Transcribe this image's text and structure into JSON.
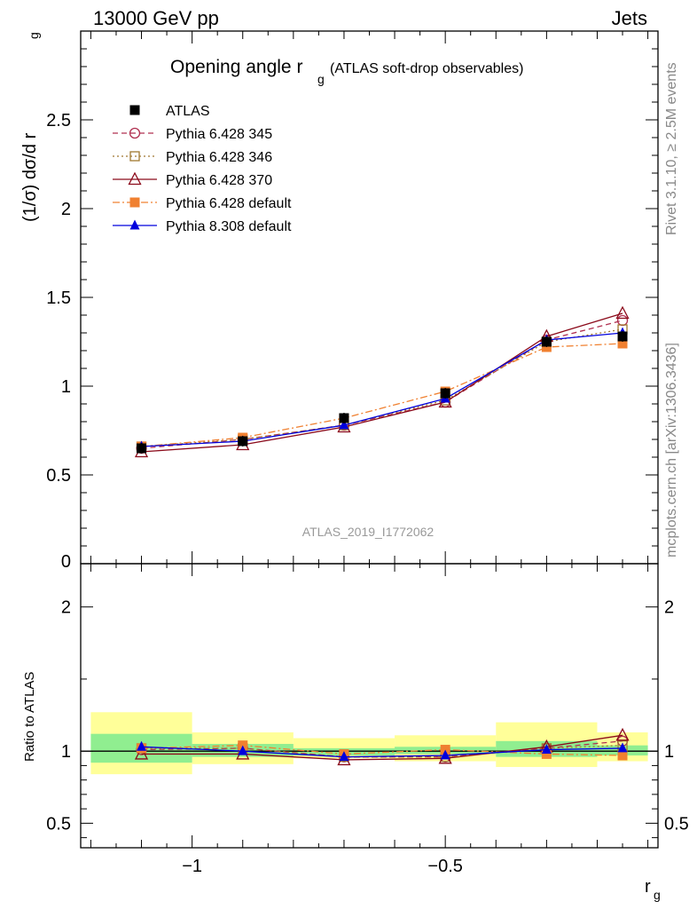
{
  "header": {
    "left": "13000 GeV pp",
    "right": "Jets"
  },
  "side_labels": {
    "rivet": "Rivet 3.1.10, ≥ 2.5M events",
    "mcplots": "mcplots.cern.ch [arXiv:1306.3436]"
  },
  "chart_data": [
    {
      "type": "line",
      "title_main": "Opening angle r",
      "title_sub": "g",
      "title_tail": "(ATLAS soft-drop observables)",
      "ylabel": "(1/σ) dσ/d r",
      "ylabel_sub": "g",
      "analysis_id": "ATLAS_2019_I1772062",
      "xlim": [
        -1.22,
        -0.08
      ],
      "ylim": [
        0,
        3.0
      ],
      "x_edges": [
        -1.2,
        -1.0,
        -0.8,
        -0.6,
        -0.4,
        -0.2,
        -0.1
      ],
      "x": [
        -1.1,
        -0.9,
        -0.7,
        -0.5,
        -0.3,
        -0.15
      ],
      "yticks": [
        0.5,
        1,
        1.5,
        2,
        2.5
      ],
      "ytick_labels": [
        "0.5",
        "1",
        "1.5",
        "2",
        "2.5"
      ],
      "y_zero_label": "0",
      "legend_placement": "top-left",
      "series": [
        {
          "name": "ATLAS",
          "color": "#000000",
          "marker": "square-filled",
          "dash": "",
          "values": [
            0.65,
            0.69,
            0.82,
            0.96,
            1.25,
            1.28
          ]
        },
        {
          "name": "Pythia 6.428 345",
          "color": "#b03050",
          "marker": "circle-open",
          "dash": "6,4",
          "values": [
            0.65,
            0.7,
            0.78,
            0.91,
            1.26,
            1.37
          ]
        },
        {
          "name": "Pythia 6.428 346",
          "color": "#a07830",
          "marker": "square-open",
          "dash": "2,3",
          "values": [
            0.66,
            0.7,
            0.78,
            0.92,
            1.25,
            1.32
          ]
        },
        {
          "name": "Pythia 6.428 370",
          "color": "#8b0a1a",
          "marker": "triangle-open",
          "dash": "",
          "values": [
            0.63,
            0.67,
            0.77,
            0.91,
            1.28,
            1.41
          ]
        },
        {
          "name": "Pythia 6.428 default",
          "color": "#f08030",
          "marker": "square-filled",
          "dash": "8,3,2,3",
          "values": [
            0.66,
            0.71,
            0.82,
            0.97,
            1.22,
            1.24
          ]
        },
        {
          "name": "Pythia 8.308 default",
          "color": "#0000dd",
          "marker": "triangle-filled",
          "dash": "",
          "values": [
            0.66,
            0.69,
            0.78,
            0.93,
            1.26,
            1.3
          ]
        }
      ]
    },
    {
      "type": "line",
      "ylabel": "Ratio to ATLAS",
      "xlabel": "r",
      "xlabel_sub": "g",
      "ylim": [
        0.33,
        2.3
      ],
      "yticks": [
        0.5,
        1,
        2
      ],
      "ytick_labels": [
        "0.5",
        "1",
        "2"
      ],
      "xticks": [
        -1,
        -0.5
      ],
      "xtick_labels": [
        "−1",
        "−0.5"
      ],
      "band_inner_color": "#90ee90",
      "band_outer_color": "#ffff99",
      "band_inner": [
        [
          0.92,
          1.12
        ],
        [
          0.96,
          1.05
        ],
        [
          0.97,
          1.02
        ],
        [
          0.98,
          1.03
        ],
        [
          0.96,
          1.07
        ],
        [
          0.97,
          1.04
        ]
      ],
      "band_outer": [
        [
          0.84,
          1.27
        ],
        [
          0.91,
          1.13
        ],
        [
          0.95,
          1.09
        ],
        [
          0.93,
          1.11
        ],
        [
          0.89,
          1.2
        ],
        [
          0.93,
          1.13
        ]
      ],
      "series": [
        {
          "name": "Pythia 6.428 345",
          "values": [
            1.01,
            1.02,
            0.96,
            0.96,
            1.02,
            1.07
          ]
        },
        {
          "name": "Pythia 6.428 346",
          "values": [
            1.02,
            1.02,
            0.96,
            0.96,
            1.02,
            1.04
          ]
        },
        {
          "name": "Pythia 6.428 370",
          "values": [
            0.98,
            0.98,
            0.94,
            0.95,
            1.03,
            1.11
          ]
        },
        {
          "name": "Pythia 6.428 default",
          "values": [
            1.02,
            1.04,
            0.98,
            1.01,
            0.98,
            0.97
          ]
        },
        {
          "name": "Pythia 8.308 default",
          "values": [
            1.03,
            1.0,
            0.96,
            0.97,
            1.01,
            1.02
          ]
        }
      ]
    }
  ]
}
